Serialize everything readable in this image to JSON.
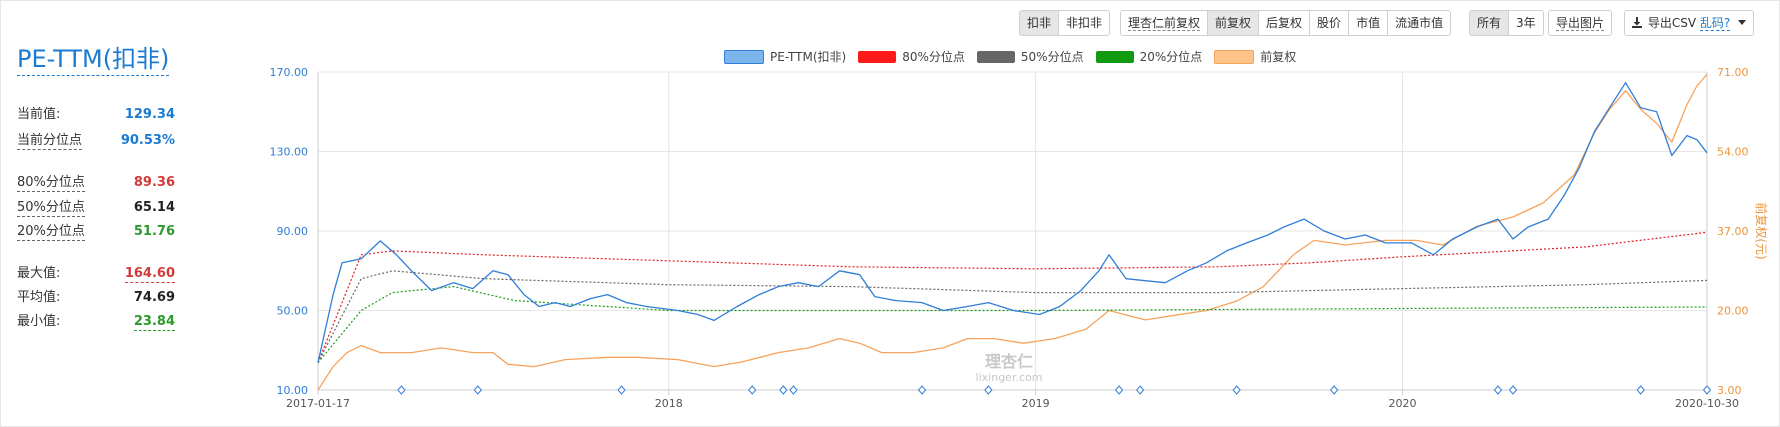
{
  "panel": {
    "title": "PE-TTM(扣非)",
    "stats": [
      {
        "label": "当前值:",
        "value": "129.34",
        "color": "blue"
      },
      {
        "label": "当前分位点",
        "value": "90.53%",
        "color": "blue"
      },
      {
        "label": "80%分位点",
        "value": "89.36",
        "color": "red"
      },
      {
        "label": "50%分位点",
        "value": "65.14",
        "color": "dark"
      },
      {
        "label": "20%分位点",
        "value": "51.76",
        "color": "green"
      },
      {
        "label": "最大值:",
        "value": "164.60",
        "color": "red"
      },
      {
        "label": "平均值:",
        "value": "74.69",
        "color": "dark"
      },
      {
        "label": "最小值:",
        "value": "23.84",
        "color": "green"
      }
    ]
  },
  "toolbar": {
    "deduct": [
      "扣非",
      "非扣非"
    ],
    "adjust": [
      "理杏仁前复权",
      "前复权",
      "后复权",
      "股价",
      "市值",
      "流通市值"
    ],
    "range": [
      "所有",
      "3年"
    ],
    "export_image": "导出图片",
    "export_csv": "导出CSV",
    "garbled_link": "乱码?"
  },
  "colors": {
    "pe": "#2f7ed8",
    "p80": "#e02020",
    "p50": "#666666",
    "p20": "#1a9a1a",
    "price": "#f7a35c",
    "axis_left": "#2f7ed8",
    "axis_right": "#e8963c"
  },
  "chart_data": {
    "type": "line",
    "legend": [
      "PE-TTM(扣非)",
      "80%分位点",
      "50%分位点",
      "20%分位点",
      "前复权"
    ],
    "legend_position": "top-center",
    "x_range": [
      "2017-01-17",
      "2020-10-30"
    ],
    "x_ticks": [
      "2017-01-17",
      "2018",
      "2019",
      "2020",
      "2020-10-30"
    ],
    "y_left": {
      "ticks": [
        "10.00",
        "50.00",
        "90.00",
        "130.00",
        "170.00"
      ],
      "range": [
        10,
        170
      ]
    },
    "y_right": {
      "label": "前复权(元)",
      "ticks": [
        "3.00",
        "20.00",
        "37.00",
        "54.00",
        "71.00"
      ],
      "range": [
        3,
        71
      ]
    },
    "grid": true,
    "watermark": {
      "cn": "理杏仁",
      "en": "lixinger.com"
    },
    "series": [
      {
        "name": "PE-TTM(扣非)",
        "points": [
          [
            "2017-01-17",
            23.8
          ],
          [
            "2017-02-01",
            58
          ],
          [
            "2017-02-10",
            74
          ],
          [
            "2017-03-01",
            76
          ],
          [
            "2017-03-20",
            85
          ],
          [
            "2017-04-05",
            78
          ],
          [
            "2017-04-20",
            70
          ],
          [
            "2017-05-10",
            60
          ],
          [
            "2017-06-01",
            64
          ],
          [
            "2017-06-20",
            61
          ],
          [
            "2017-07-10",
            70
          ],
          [
            "2017-07-25",
            68
          ],
          [
            "2017-08-10",
            58
          ],
          [
            "2017-08-25",
            52
          ],
          [
            "2017-09-10",
            54
          ],
          [
            "2017-09-25",
            52
          ],
          [
            "2017-10-15",
            56
          ],
          [
            "2017-11-01",
            58
          ],
          [
            "2017-11-20",
            54
          ],
          [
            "2017-12-10",
            52
          ],
          [
            "2018-01-10",
            50
          ],
          [
            "2018-01-30",
            48
          ],
          [
            "2018-02-15",
            45
          ],
          [
            "2018-03-10",
            52
          ],
          [
            "2018-04-01",
            58
          ],
          [
            "2018-04-20",
            62
          ],
          [
            "2018-05-10",
            64
          ],
          [
            "2018-05-30",
            62
          ],
          [
            "2018-06-20",
            70
          ],
          [
            "2018-07-10",
            68
          ],
          [
            "2018-07-25",
            57
          ],
          [
            "2018-08-15",
            55
          ],
          [
            "2018-09-10",
            54
          ],
          [
            "2018-10-01",
            50
          ],
          [
            "2018-10-25",
            52
          ],
          [
            "2018-11-15",
            54
          ],
          [
            "2018-12-10",
            50
          ],
          [
            "2019-01-05",
            48
          ],
          [
            "2019-01-25",
            52
          ],
          [
            "2019-02-15",
            60
          ],
          [
            "2019-03-05",
            70
          ],
          [
            "2019-03-15",
            78
          ],
          [
            "2019-04-01",
            66
          ],
          [
            "2019-04-20",
            65
          ],
          [
            "2019-05-10",
            64
          ],
          [
            "2019-06-01",
            70
          ],
          [
            "2019-06-20",
            74
          ],
          [
            "2019-07-10",
            80
          ],
          [
            "2019-07-30",
            84
          ],
          [
            "2019-08-20",
            88
          ],
          [
            "2019-09-05",
            92
          ],
          [
            "2019-09-25",
            96
          ],
          [
            "2019-10-15",
            90
          ],
          [
            "2019-11-05",
            86
          ],
          [
            "2019-11-25",
            88
          ],
          [
            "2019-12-15",
            84
          ],
          [
            "2020-01-10",
            84
          ],
          [
            "2020-02-01",
            78
          ],
          [
            "2020-02-20",
            86
          ],
          [
            "2020-03-15",
            92
          ],
          [
            "2020-04-05",
            96
          ],
          [
            "2020-04-20",
            86
          ],
          [
            "2020-05-05",
            92
          ],
          [
            "2020-05-25",
            96
          ],
          [
            "2020-06-10",
            108
          ],
          [
            "2020-06-25",
            122
          ],
          [
            "2020-07-10",
            140
          ],
          [
            "2020-07-25",
            152
          ],
          [
            "2020-08-10",
            164.6
          ],
          [
            "2020-08-25",
            152
          ],
          [
            "2020-09-10",
            150
          ],
          [
            "2020-09-25",
            128
          ],
          [
            "2020-10-10",
            138
          ],
          [
            "2020-10-20",
            136
          ],
          [
            "2020-10-30",
            129.34
          ]
        ]
      },
      {
        "name": "80%分位点",
        "points": [
          [
            "2017-01-17",
            23.8
          ],
          [
            "2017-03-01",
            78
          ],
          [
            "2017-04-01",
            80
          ],
          [
            "2017-07-01",
            78
          ],
          [
            "2018-01-01",
            75
          ],
          [
            "2018-07-01",
            72
          ],
          [
            "2019-01-01",
            71
          ],
          [
            "2019-07-01",
            72
          ],
          [
            "2019-10-01",
            74
          ],
          [
            "2020-01-01",
            77
          ],
          [
            "2020-07-01",
            82
          ],
          [
            "2020-10-30",
            89.36
          ]
        ]
      },
      {
        "name": "50%分位点",
        "points": [
          [
            "2017-01-17",
            23.8
          ],
          [
            "2017-03-01",
            66
          ],
          [
            "2017-04-01",
            70
          ],
          [
            "2017-07-01",
            66
          ],
          [
            "2018-01-01",
            63
          ],
          [
            "2018-07-01",
            62
          ],
          [
            "2019-01-01",
            59
          ],
          [
            "2019-07-01",
            59
          ],
          [
            "2020-01-01",
            61
          ],
          [
            "2020-07-01",
            63
          ],
          [
            "2020-10-30",
            65.14
          ]
        ]
      },
      {
        "name": "20%分位点",
        "points": [
          [
            "2017-01-17",
            23.8
          ],
          [
            "2017-03-01",
            50
          ],
          [
            "2017-04-01",
            59
          ],
          [
            "2017-06-01",
            62
          ],
          [
            "2017-08-01",
            55
          ],
          [
            "2018-01-01",
            50
          ],
          [
            "2019-01-01",
            50
          ],
          [
            "2020-01-01",
            51
          ],
          [
            "2020-10-30",
            51.76
          ]
        ]
      },
      {
        "name": "前复权",
        "axis": "right",
        "points": [
          [
            "2017-01-17",
            3
          ],
          [
            "2017-02-01",
            8
          ],
          [
            "2017-02-15",
            11
          ],
          [
            "2017-03-01",
            12.5
          ],
          [
            "2017-03-20",
            11
          ],
          [
            "2017-04-20",
            11
          ],
          [
            "2017-05-20",
            12
          ],
          [
            "2017-06-20",
            11
          ],
          [
            "2017-07-10",
            11
          ],
          [
            "2017-07-25",
            8.5
          ],
          [
            "2017-08-20",
            8
          ],
          [
            "2017-09-20",
            9.5
          ],
          [
            "2017-11-01",
            10
          ],
          [
            "2017-12-01",
            10
          ],
          [
            "2018-01-10",
            9.5
          ],
          [
            "2018-02-15",
            8
          ],
          [
            "2018-03-15",
            9
          ],
          [
            "2018-04-20",
            11
          ],
          [
            "2018-05-20",
            12
          ],
          [
            "2018-06-20",
            14
          ],
          [
            "2018-07-10",
            13
          ],
          [
            "2018-08-01",
            11
          ],
          [
            "2018-09-01",
            11
          ],
          [
            "2018-10-01",
            12
          ],
          [
            "2018-10-25",
            14
          ],
          [
            "2018-11-20",
            14
          ],
          [
            "2018-12-20",
            13
          ],
          [
            "2019-01-20",
            14
          ],
          [
            "2019-02-20",
            16
          ],
          [
            "2019-03-15",
            20
          ],
          [
            "2019-04-20",
            18
          ],
          [
            "2019-05-20",
            19
          ],
          [
            "2019-06-20",
            20
          ],
          [
            "2019-07-20",
            22
          ],
          [
            "2019-08-15",
            25
          ],
          [
            "2019-09-15",
            32
          ],
          [
            "2019-10-05",
            35
          ],
          [
            "2019-11-05",
            34
          ],
          [
            "2019-12-15",
            35
          ],
          [
            "2020-01-15",
            35
          ],
          [
            "2020-02-10",
            34
          ],
          [
            "2020-03-15",
            38
          ],
          [
            "2020-04-20",
            40
          ],
          [
            "2020-05-20",
            43
          ],
          [
            "2020-06-20",
            49
          ],
          [
            "2020-07-10",
            58
          ],
          [
            "2020-07-25",
            63
          ],
          [
            "2020-08-10",
            67
          ],
          [
            "2020-08-25",
            63
          ],
          [
            "2020-09-10",
            60
          ],
          [
            "2020-09-25",
            56
          ],
          [
            "2020-10-10",
            64
          ],
          [
            "2020-10-20",
            68
          ],
          [
            "2020-10-30",
            70.5
          ]
        ]
      }
    ],
    "markers_dates": [
      "2017-04-10",
      "2017-06-25",
      "2017-11-15",
      "2018-03-25",
      "2018-04-25",
      "2018-05-05",
      "2018-09-10",
      "2018-11-15",
      "2019-03-25",
      "2019-04-15",
      "2019-07-20",
      "2019-10-25",
      "2020-04-05",
      "2020-04-20",
      "2020-08-25",
      "2020-10-30"
    ]
  }
}
